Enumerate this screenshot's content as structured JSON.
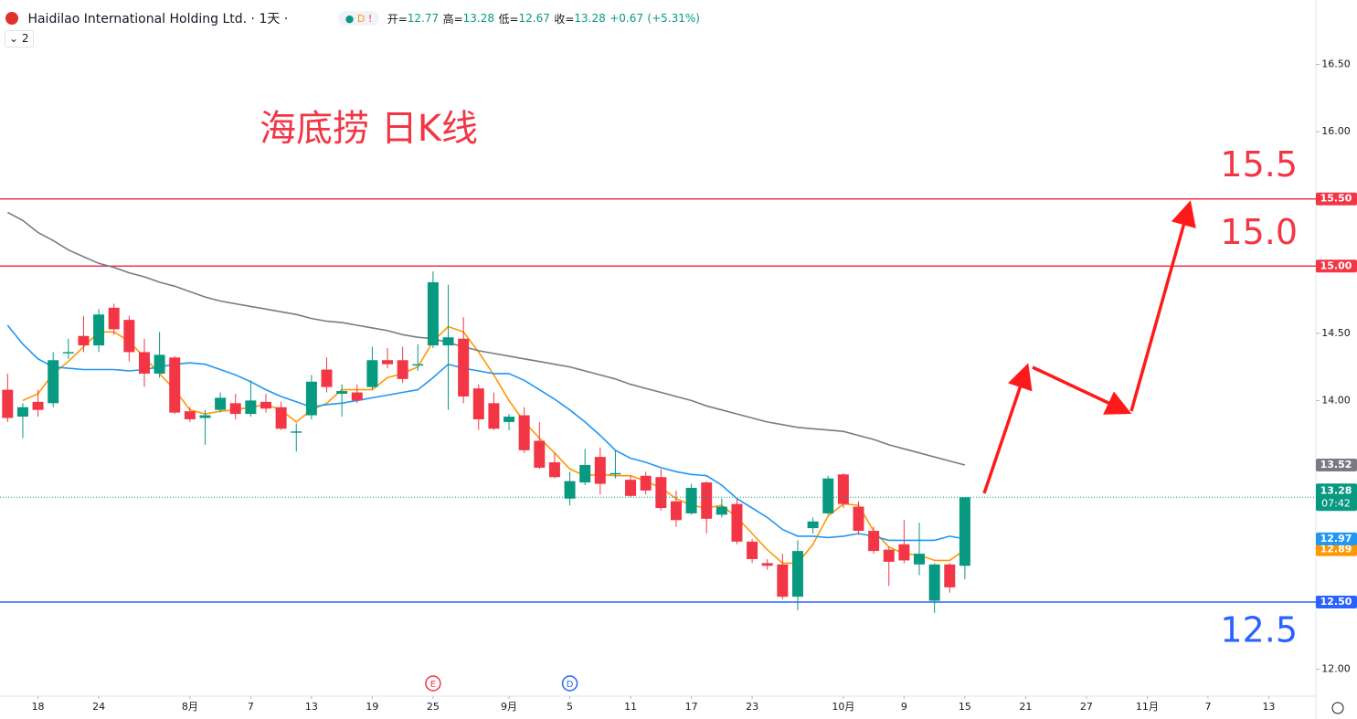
{
  "header": {
    "title": "Haidilao International Holding Ltd. · 1天 ·",
    "status_d": "D",
    "status_alert": "!",
    "open_label": "开=",
    "high_label": "高=",
    "low_label": "低=",
    "close_label": "收=",
    "change": "+0.67",
    "change_pct": "(+5.31%)",
    "indicators_count": "2"
  },
  "chart_data": {
    "type": "candlestick",
    "annotation": "海底捞 日K线",
    "countdown": "07:42",
    "categories": [
      null,
      null,
      null,
      null,
      null,
      null,
      null,
      null,
      null,
      null,
      null,
      null,
      null,
      null,
      null,
      null,
      null,
      null,
      null,
      null,
      null,
      null,
      null,
      null,
      null,
      null,
      null,
      null,
      null,
      null,
      null,
      null,
      null,
      null,
      null,
      null,
      null,
      null,
      null,
      null,
      null,
      null,
      null,
      null,
      null,
      null,
      null,
      null,
      null,
      null,
      null,
      null,
      null,
      null,
      null,
      null,
      null,
      null,
      null,
      null,
      null,
      null,
      null,
      null
    ],
    "open": [
      14.08,
      13.88,
      13.99,
      13.98,
      14.35,
      14.48,
      14.41,
      14.69,
      14.6,
      14.36,
      14.2,
      14.32,
      13.92,
      13.87,
      13.93,
      13.98,
      13.9,
      13.99,
      13.95,
      13.76,
      13.89,
      14.23,
      14.05,
      14.06,
      14.1,
      14.3,
      14.3,
      14.26,
      14.41,
      14.41,
      14.46,
      14.09,
      13.98,
      13.84,
      13.89,
      13.7,
      13.54,
      13.27,
      13.39,
      13.58,
      13.45,
      13.41,
      13.44,
      13.43,
      13.25,
      13.16,
      13.39,
      13.15,
      13.23,
      12.95,
      12.79,
      12.78,
      12.54,
      13.05,
      13.16,
      13.45,
      13.21,
      13.03,
      12.89,
      12.93,
      12.78,
      12.51,
      12.78,
      12.77
    ],
    "high": [
      14.2,
      13.98,
      14.08,
      14.36,
      14.46,
      14.63,
      14.68,
      14.72,
      14.63,
      14.46,
      14.51,
      14.33,
      13.95,
      13.93,
      14.06,
      14.05,
      14.15,
      14.05,
      13.99,
      13.83,
      14.19,
      14.32,
      14.12,
      14.12,
      14.4,
      14.39,
      14.4,
      14.42,
      14.96,
      14.86,
      14.62,
      14.12,
      14.06,
      13.9,
      13.95,
      13.84,
      13.61,
      13.47,
      13.64,
      13.65,
      13.63,
      13.44,
      13.47,
      13.49,
      13.33,
      13.38,
      13.4,
      13.27,
      13.27,
      12.97,
      12.82,
      12.86,
      12.96,
      13.13,
      13.44,
      13.46,
      13.25,
      13.06,
      12.91,
      13.11,
      13.09,
      12.79,
      12.79,
      13.28
    ],
    "low": [
      13.84,
      13.72,
      13.88,
      13.95,
      14.31,
      14.36,
      14.36,
      14.49,
      14.29,
      14.1,
      14.17,
      13.9,
      13.84,
      13.67,
      13.91,
      13.86,
      13.88,
      13.91,
      13.78,
      13.62,
      13.86,
      14.06,
      13.88,
      13.98,
      14.08,
      14.24,
      14.13,
      14.22,
      14.39,
      13.93,
      13.98,
      13.78,
      13.78,
      13.78,
      13.61,
      13.49,
      13.42,
      13.22,
      13.37,
      13.3,
      13.42,
      13.28,
      13.3,
      13.18,
      13.06,
      13.15,
      13.01,
      13.13,
      12.93,
      12.79,
      12.74,
      12.52,
      12.44,
      13.01,
      13.15,
      13.2,
      13.0,
      12.86,
      12.62,
      12.79,
      12.7,
      12.42,
      12.57,
      12.67
    ],
    "close": [
      13.87,
      13.95,
      13.93,
      14.3,
      14.36,
      14.41,
      14.64,
      14.53,
      14.36,
      14.2,
      14.34,
      13.91,
      13.86,
      13.89,
      14.02,
      13.9,
      14.0,
      13.94,
      13.79,
      13.77,
      14.14,
      14.1,
      14.07,
      14.0,
      14.3,
      14.27,
      14.16,
      14.27,
      14.88,
      14.47,
      14.03,
      13.86,
      13.79,
      13.88,
      13.63,
      13.5,
      13.43,
      13.4,
      13.52,
      13.38,
      13.46,
      13.29,
      13.33,
      13.2,
      13.11,
      13.35,
      13.12,
      13.21,
      12.95,
      12.82,
      12.77,
      12.54,
      12.88,
      13.1,
      13.42,
      13.23,
      13.03,
      12.88,
      12.8,
      12.81,
      12.86,
      12.78,
      12.61,
      13.28
    ],
    "up_color": "#089981",
    "down_color": "#f23645",
    "series": [
      {
        "color": "#ff9800",
        "values": [
          null,
          14.0,
          14.05,
          14.2,
          14.29,
          14.4,
          14.51,
          14.51,
          14.44,
          14.32,
          14.2,
          14.08,
          13.93,
          13.9,
          13.92,
          13.93,
          13.95,
          13.97,
          13.93,
          13.84,
          13.93,
          13.98,
          14.08,
          14.08,
          14.08,
          14.17,
          14.2,
          14.25,
          14.44,
          14.55,
          14.51,
          14.36,
          14.19,
          14.0,
          13.84,
          13.72,
          13.61,
          13.49,
          13.44,
          13.45,
          13.44,
          13.44,
          13.4,
          13.35,
          13.27,
          13.22,
          13.2,
          13.22,
          13.13,
          13.01,
          12.89,
          12.79,
          12.79,
          12.93,
          13.14,
          13.23,
          13.22,
          13.03,
          12.91,
          12.86,
          12.85,
          12.81,
          12.81,
          12.89
        ]
      },
      {
        "color": "#2196f3",
        "values": [
          14.56,
          14.42,
          14.31,
          14.25,
          14.24,
          14.23,
          14.23,
          14.23,
          14.22,
          14.23,
          14.25,
          14.27,
          14.28,
          14.27,
          14.23,
          14.19,
          14.14,
          14.08,
          14.03,
          13.99,
          13.95,
          13.97,
          13.98,
          14.0,
          14.02,
          14.04,
          14.06,
          14.08,
          14.17,
          14.27,
          14.24,
          14.22,
          14.2,
          14.2,
          14.15,
          14.08,
          14.01,
          13.93,
          13.84,
          13.74,
          13.63,
          13.57,
          13.54,
          13.5,
          13.47,
          13.45,
          13.44,
          13.37,
          13.27,
          13.2,
          13.13,
          13.04,
          12.99,
          12.99,
          12.98,
          12.99,
          13.01,
          12.99,
          12.96,
          12.96,
          12.96,
          12.96,
          12.99,
          12.97
        ]
      },
      {
        "color": "#787b86",
        "values": [
          15.4,
          15.34,
          15.25,
          15.19,
          15.12,
          15.07,
          15.02,
          14.99,
          14.95,
          14.92,
          14.88,
          14.85,
          14.81,
          14.77,
          14.74,
          14.72,
          14.7,
          14.68,
          14.66,
          14.64,
          14.61,
          14.59,
          14.58,
          14.56,
          14.54,
          14.52,
          14.49,
          14.47,
          14.46,
          14.43,
          14.4,
          14.37,
          14.35,
          14.33,
          14.31,
          14.29,
          14.27,
          14.25,
          14.22,
          14.19,
          14.16,
          14.12,
          14.09,
          14.06,
          14.03,
          14.0,
          13.96,
          13.93,
          13.9,
          13.87,
          13.84,
          13.82,
          13.8,
          13.79,
          13.78,
          13.77,
          13.74,
          13.71,
          13.67,
          13.64,
          13.61,
          13.58,
          13.55,
          13.52
        ]
      }
    ],
    "ylim": [
      11.8,
      16.98
    ],
    "yticks": [
      {
        "value": 12,
        "label": "12.00"
      },
      {
        "value": 14,
        "label": "14.00"
      },
      {
        "value": 14.5,
        "label": "14.50"
      },
      {
        "value": 16,
        "label": "16.00"
      },
      {
        "value": 16.5,
        "label": "16.50"
      }
    ],
    "xlim": [
      -0.5,
      86.1
    ],
    "xticks": [
      {
        "value": 2,
        "label": "18"
      },
      {
        "value": 6,
        "label": "24"
      },
      {
        "value": 12,
        "label": "8月"
      },
      {
        "value": 16,
        "label": "7"
      },
      {
        "value": 20,
        "label": "13"
      },
      {
        "value": 24,
        "label": "19"
      },
      {
        "value": 28,
        "label": "25"
      },
      {
        "value": 33,
        "label": "9月"
      },
      {
        "value": 37,
        "label": "5"
      },
      {
        "value": 41,
        "label": "11"
      },
      {
        "value": 45,
        "label": "17"
      },
      {
        "value": 49,
        "label": "23"
      },
      {
        "value": 55,
        "label": "10月"
      },
      {
        "value": 59,
        "label": "9"
      },
      {
        "value": 63,
        "label": "15"
      },
      {
        "value": 67,
        "label": "21"
      },
      {
        "value": 71,
        "label": "27"
      },
      {
        "value": 75,
        "label": "11月"
      },
      {
        "value": 79,
        "label": "7"
      },
      {
        "value": 83,
        "label": "13"
      }
    ],
    "hlines": [
      {
        "value": 15.5,
        "label": "15.50",
        "note": "15.5",
        "color": "#f23645",
        "note_side": "above"
      },
      {
        "value": 15,
        "label": "15.00",
        "note": "15.0",
        "color": "#f23645",
        "note_side": "above"
      },
      {
        "value": 12.5,
        "label": "12.50",
        "note": "12.5",
        "color": "#2962ff",
        "note_side": "below"
      }
    ],
    "events": [
      {
        "x": 28,
        "label": "E",
        "color": "#f23645"
      },
      {
        "x": 37,
        "label": "D",
        "color": "#2962ff"
      }
    ]
  }
}
